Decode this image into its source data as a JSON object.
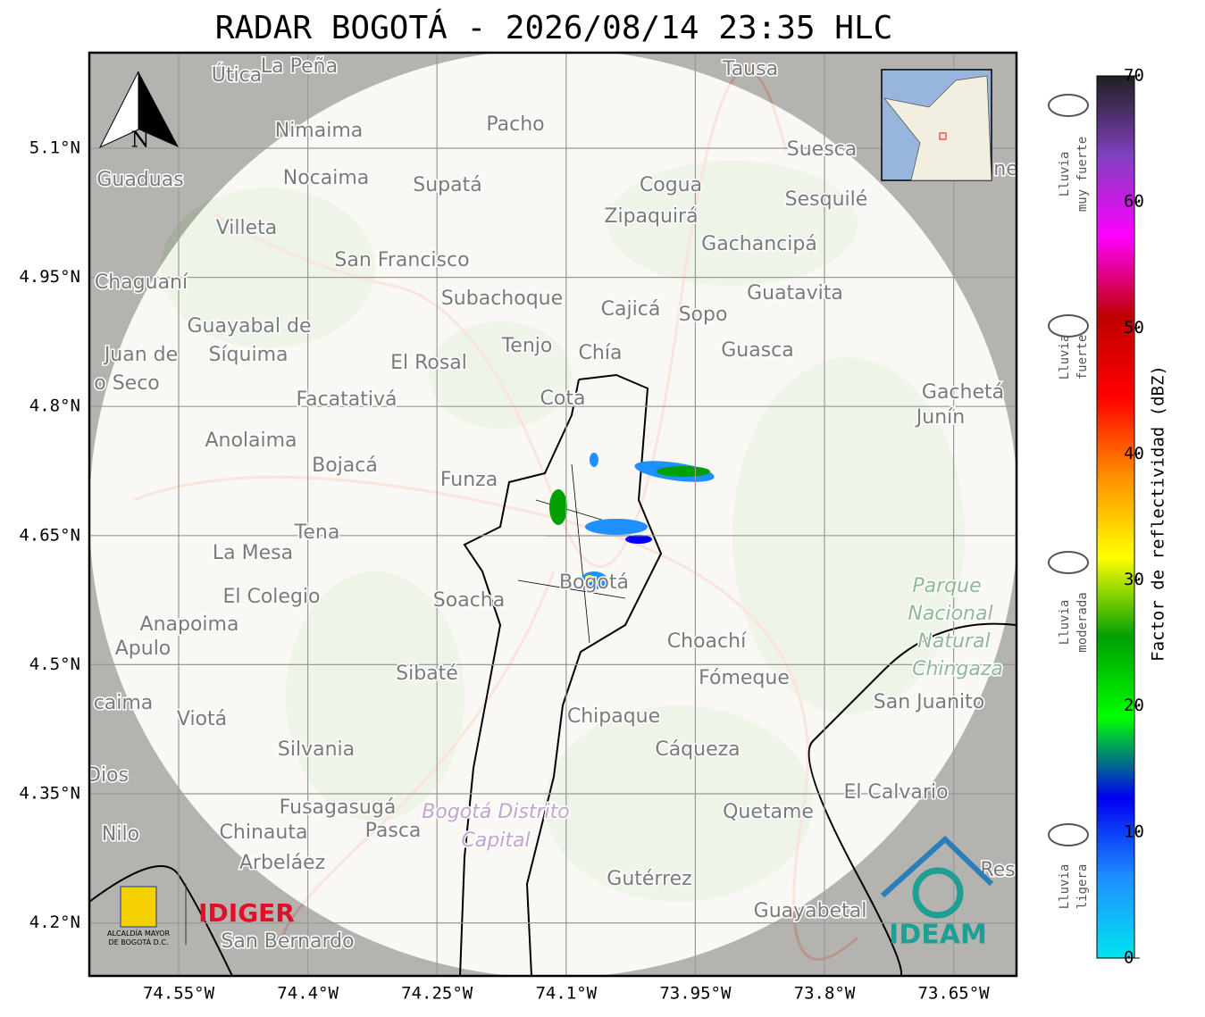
{
  "title": "RADAR BOGOTÁ - 2026/08/14 23:35 HLC",
  "map": {
    "north_label": "N",
    "lonticks": [
      {
        "value": -74.55,
        "label": "74.55°W"
      },
      {
        "value": -74.4,
        "label": "74.4°W"
      },
      {
        "value": -74.25,
        "label": "74.25°W"
      },
      {
        "value": -74.1,
        "label": "74.1°W"
      },
      {
        "value": -73.95,
        "label": "73.95°W"
      },
      {
        "value": -73.8,
        "label": "73.8°W"
      },
      {
        "value": -73.65,
        "label": "73.65°W"
      }
    ],
    "latticks": [
      {
        "value": 5.1,
        "label": "5.1°N"
      },
      {
        "value": 4.95,
        "label": "4.95°N"
      },
      {
        "value": 4.8,
        "label": "4.8°N"
      },
      {
        "value": 4.65,
        "label": "4.65°N"
      },
      {
        "value": 4.5,
        "label": "4.5°N"
      },
      {
        "value": 4.35,
        "label": "4.35°N"
      },
      {
        "value": 4.2,
        "label": "4.2°N"
      }
    ],
    "places": [
      "Útica",
      "La Peña",
      "Tausa",
      "Pacho",
      "Nimaima",
      "Guaduas",
      "Nocaima",
      "Supatá",
      "Cogua",
      "Suesca",
      "Sesquilé",
      "Zipaquirá",
      "Villeta",
      "Gachancipá",
      "San Francisco",
      "Chaguaní",
      "Guatavita",
      "Subachoque",
      "Cajicá",
      "Sopo",
      "Guayabal de",
      "Síquima",
      "Tenjo",
      "Chía",
      "Guasca",
      "Juan de",
      "o Seco",
      "El Rosal",
      "Facatativá",
      "Cota",
      "Gachetá",
      "Junín",
      "Anolaima",
      "Bojacá",
      "Funza",
      "Tena",
      "La Mesa",
      "El Colegio",
      "Soacha",
      "Bogotá",
      "Anapoima",
      "Apulo",
      "Choachí",
      "Sibaté",
      "Fómeque",
      "San Juanito",
      "caima",
      "Viotá",
      "Chipaque",
      "Silvania",
      "Cáqueza",
      "Dios",
      "El Calvario",
      "Fusagasugá",
      "Quetame",
      "Nilo",
      "Chinauta",
      "Pasca",
      "Arbeláez",
      "Gutérrez",
      "Res",
      "Guayabetal",
      "San Bernardo",
      "ne"
    ],
    "park": [
      "Parque",
      "Nacional",
      "Natural",
      "Chingaza"
    ],
    "district": [
      "Bogotá Distrito",
      "Capital"
    ]
  },
  "logos": {
    "alcaldia": [
      "ALCALDÍA MAYOR",
      "DE BOGOTÁ D.C."
    ],
    "idiger": "IDIGER",
    "ideam": "IDEAM"
  },
  "colorbar": {
    "label": "Factor de reflectividad (dBZ)",
    "lim": [
      0,
      70
    ],
    "ticks": [
      0,
      10,
      20,
      30,
      40,
      50,
      60,
      70
    ],
    "colors": [
      "#00e5f0",
      "#1e90ff",
      "#0000f0",
      "#00ff00",
      "#00a000",
      "#ffff00",
      "#ff9000",
      "#ff0000",
      "#c00000",
      "#ff00ff",
      "#8040c0",
      "#202020"
    ],
    "categories": [
      [
        "Lluvia",
        "muy fuerte"
      ],
      [
        "Lluvia",
        "fuerte"
      ],
      [
        "Lluvia",
        "moderada"
      ],
      [
        "Lluvia",
        "ligera"
      ]
    ]
  }
}
